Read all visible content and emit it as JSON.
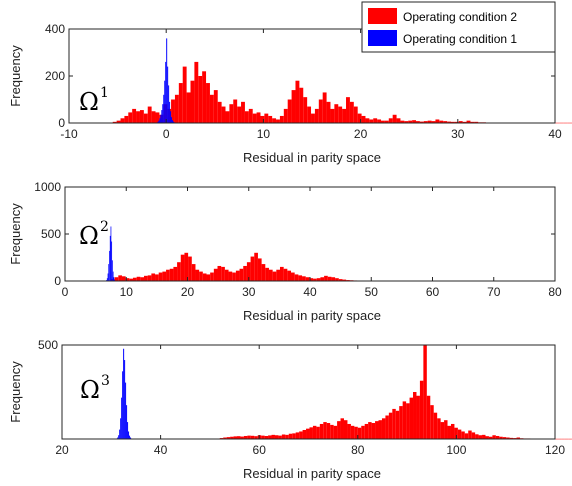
{
  "colors": {
    "condition_2": "#ff0000",
    "condition_1": "#0000ff"
  },
  "legend": {
    "placement": "top-right",
    "entries": [
      {
        "label": "Operating condition 2",
        "color": "#ff0000"
      },
      {
        "label": "Operating condition 1",
        "color": "#0000ff"
      }
    ]
  },
  "chart_data": [
    {
      "type": "bar",
      "subtype": "histogram",
      "panel_label": "Ω",
      "panel_label_sup": "1",
      "xlabel": "Residual in parity space",
      "ylabel": "Frequency",
      "xlim": [
        -10,
        40
      ],
      "ylim": [
        0,
        400
      ],
      "xticks": [
        -10,
        0,
        10,
        20,
        30,
        40
      ],
      "yticks": [
        0,
        200,
        400
      ],
      "grid": false,
      "series": [
        {
          "name": "Operating condition 2",
          "color": "#ff0000",
          "bin_start": -5.5,
          "bin_width": 0.4,
          "values": [
            5,
            10,
            20,
            30,
            45,
            60,
            50,
            55,
            40,
            70,
            50,
            45,
            35,
            80,
            60,
            100,
            120,
            170,
            240,
            130,
            180,
            260,
            200,
            220,
            170,
            120,
            140,
            90,
            70,
            50,
            80,
            100,
            70,
            90,
            50,
            60,
            40,
            45,
            30,
            40,
            30,
            20,
            15,
            30,
            60,
            100,
            140,
            180,
            150,
            110,
            70,
            40,
            60,
            100,
            130,
            90,
            60,
            80,
            70,
            60,
            110,
            90,
            70,
            40,
            30,
            20,
            15,
            20,
            15,
            10,
            10,
            20,
            35,
            20,
            10,
            8,
            10,
            12,
            8,
            6,
            8,
            10,
            8,
            15,
            10,
            8,
            6,
            5,
            5,
            8,
            5,
            10,
            5,
            5,
            3,
            3,
            2,
            2,
            2,
            2,
            2,
            1,
            1,
            1,
            1,
            1,
            1,
            1,
            1,
            1,
            1,
            1,
            1,
            1,
            1,
            1,
            1,
            1,
            1,
            1,
            1,
            1,
            1,
            1,
            1,
            1,
            1,
            1,
            1,
            1,
            1,
            1,
            1,
            1,
            1,
            1
          ]
        },
        {
          "name": "Operating condition 1",
          "color": "#0000ff",
          "bin_start": -1.0,
          "bin_width": 0.1,
          "values": [
            2,
            5,
            10,
            20,
            35,
            55,
            80,
            120,
            180,
            260,
            360,
            240,
            160,
            90,
            50,
            25,
            12,
            6,
            3,
            1
          ]
        }
      ]
    },
    {
      "type": "bar",
      "subtype": "histogram",
      "panel_label": "Ω",
      "panel_label_sup": "2",
      "xlabel": "Residual in parity space",
      "ylabel": "Frequency",
      "xlim": [
        0,
        80
      ],
      "ylim": [
        0,
        1000
      ],
      "xticks": [
        0,
        10,
        20,
        30,
        40,
        50,
        60,
        70,
        80
      ],
      "yticks": [
        0,
        500,
        1000
      ],
      "grid": false,
      "series": [
        {
          "name": "Operating condition 2",
          "color": "#ff0000",
          "bin_start": 7.5,
          "bin_width": 0.6,
          "values": [
            20,
            40,
            60,
            50,
            30,
            25,
            35,
            45,
            40,
            55,
            60,
            80,
            70,
            90,
            100,
            120,
            130,
            150,
            200,
            280,
            300,
            260,
            180,
            120,
            100,
            80,
            70,
            90,
            130,
            160,
            150,
            120,
            100,
            90,
            110,
            130,
            160,
            200,
            260,
            300,
            240,
            180,
            140,
            120,
            100,
            120,
            150,
            130,
            110,
            90,
            70,
            60,
            50,
            40,
            30,
            25,
            30,
            40,
            55,
            45,
            40,
            30,
            20,
            15,
            10,
            8,
            6,
            5,
            5,
            4,
            4,
            3,
            3,
            3,
            2,
            2,
            2,
            2,
            1,
            1,
            1,
            1,
            1,
            1,
            1,
            1,
            1,
            1,
            1,
            1,
            1,
            1,
            1,
            1,
            1,
            1,
            1,
            1,
            1,
            1,
            1,
            1,
            1,
            1,
            1,
            1,
            1,
            1,
            1,
            1,
            1,
            1
          ]
        },
        {
          "name": "Operating condition 1",
          "color": "#0000ff",
          "bin_start": 6.6,
          "bin_width": 0.12,
          "values": [
            3,
            10,
            30,
            80,
            180,
            320,
            480,
            580,
            420,
            220,
            100,
            40,
            12,
            4
          ]
        }
      ]
    },
    {
      "type": "bar",
      "subtype": "histogram",
      "panel_label": "Ω",
      "panel_label_sup": "3",
      "xlabel": "Residual in parity space",
      "ylabel": "Frequency",
      "xlim": [
        20,
        120
      ],
      "ylim": [
        0,
        500
      ],
      "xticks": [
        20,
        40,
        60,
        80,
        100,
        120
      ],
      "yticks": [
        500
      ],
      "grid": false,
      "series": [
        {
          "name": "Operating condition 2",
          "color": "#ff0000",
          "bin_start": 52,
          "bin_width": 0.7,
          "values": [
            5,
            8,
            10,
            12,
            14,
            15,
            13,
            16,
            18,
            17,
            15,
            20,
            18,
            16,
            19,
            22,
            20,
            18,
            24,
            22,
            28,
            30,
            35,
            40,
            48,
            55,
            62,
            70,
            65,
            80,
            90,
            85,
            75,
            70,
            95,
            110,
            100,
            80,
            70,
            65,
            60,
            70,
            80,
            90,
            85,
            95,
            100,
            110,
            125,
            140,
            160,
            150,
            175,
            200,
            190,
            220,
            250,
            230,
            310,
            500,
            230,
            180,
            140,
            110,
            90,
            100,
            70,
            80,
            60,
            50,
            40,
            30,
            45,
            35,
            25,
            20,
            22,
            15,
            12,
            20,
            16,
            12,
            10,
            8,
            6,
            5,
            8,
            4,
            3,
            3,
            2,
            2,
            2,
            2,
            2,
            1,
            1,
            1,
            1,
            1,
            1,
            1,
            1,
            1,
            1
          ]
        },
        {
          "name": "Operating condition 1",
          "color": "#0000ff",
          "bin_start": 31.0,
          "bin_width": 0.2,
          "values": [
            3,
            8,
            20,
            50,
            110,
            220,
            360,
            480,
            420,
            300,
            180,
            90,
            40,
            18,
            8,
            3
          ]
        }
      ]
    }
  ]
}
